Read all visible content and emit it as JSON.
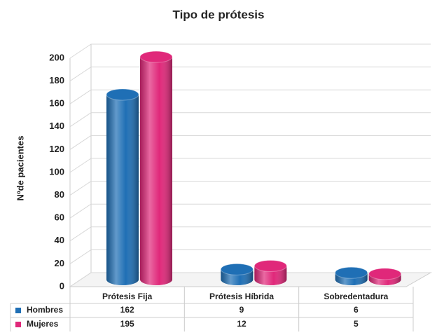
{
  "chart_data": {
    "type": "bar3d",
    "title": "Tipo de prótesis",
    "y_label": "Nºde pacientes",
    "categories": [
      "Prótesis Fija",
      "Prótesis Híbrida",
      "Sobredentadura"
    ],
    "series": [
      {
        "name": "Hombres",
        "color": "#1f6fb5",
        "values": [
          162,
          9,
          6
        ]
      },
      {
        "name": "Mujeres",
        "color": "#e0287a",
        "values": [
          195,
          12,
          5
        ]
      }
    ],
    "ylim": [
      0,
      200
    ],
    "yticks": [
      0,
      20,
      40,
      60,
      80,
      100,
      120,
      140,
      160,
      180,
      200
    ],
    "grid": true,
    "data_table": true
  }
}
